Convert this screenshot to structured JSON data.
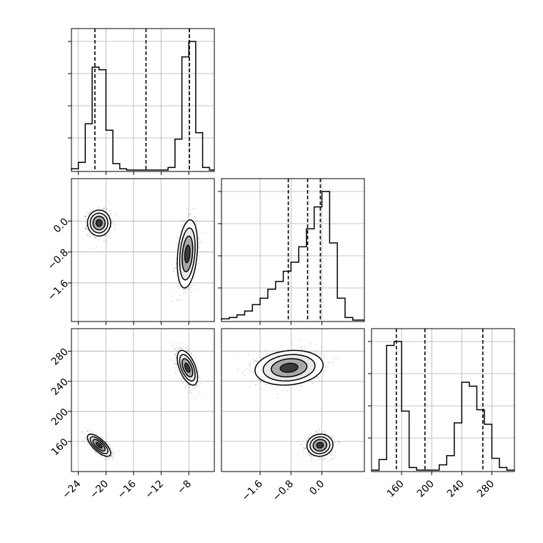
{
  "chart_data": {
    "type": "corner",
    "parameters": [
      "",
      "",
      ""
    ],
    "colors": {
      "hist": "#000000",
      "grid": "#b0b0b0",
      "frame": "#000000",
      "scatter": "#000000",
      "background": "#ffffff"
    },
    "grid": true,
    "ranges": [
      [
        -25,
        -4.3
      ],
      [
        -2.6,
        1.1
      ],
      [
        120,
        310
      ]
    ],
    "ticks": [
      {
        "values": [
          -24,
          -20,
          -16,
          -12,
          -8
        ],
        "labels": [
          "−24",
          "−20",
          "−16",
          "−12",
          "−8"
        ]
      },
      {
        "values": [
          -1.6,
          -0.8,
          0.0
        ],
        "labels": [
          "−1.6",
          "−0.8",
          "0.0"
        ]
      },
      {
        "values": [
          160,
          200,
          240,
          280
        ],
        "labels": [
          "160",
          "200",
          "240",
          "280"
        ]
      }
    ],
    "quantiles": [
      [
        -21.6,
        -14.2,
        -7.9
      ],
      [
        -0.87,
        -0.37,
        -0.04
      ],
      [
        153,
        191,
        268
      ]
    ],
    "histograms": [
      {
        "bin_edges": [
          -25,
          -24,
          -23,
          -22,
          -21,
          -20,
          -19,
          -18,
          -17,
          -16,
          -15,
          -14,
          -13,
          -12,
          -11,
          -10,
          -9,
          -8,
          -7,
          -6,
          -5,
          -4.3
        ],
        "counts": [
          0.01,
          0.06,
          0.36,
          0.8,
          0.78,
          0.31,
          0.05,
          0.01,
          0,
          0,
          0,
          0,
          0,
          0,
          0.02,
          0.24,
          0.88,
          1.0,
          0.29,
          0.02,
          0
        ]
      },
      {
        "bin_edges": [
          -2.6,
          -2.4,
          -2.2,
          -2.0,
          -1.8,
          -1.6,
          -1.4,
          -1.2,
          -1.0,
          -0.8,
          -0.6,
          -0.4,
          -0.2,
          0.0,
          0.2,
          0.4,
          0.6,
          0.8,
          1.0,
          1.1
        ],
        "counts": [
          0.01,
          0.02,
          0.04,
          0.07,
          0.12,
          0.17,
          0.24,
          0.3,
          0.38,
          0.45,
          0.57,
          0.71,
          0.88,
          1.0,
          0.6,
          0.17,
          0.02,
          0,
          0
        ]
      },
      {
        "bin_edges": [
          120,
          130,
          140,
          150,
          160,
          170,
          180,
          190,
          200,
          210,
          220,
          230,
          240,
          250,
          260,
          270,
          280,
          290,
          300,
          310
        ],
        "counts": [
          0,
          0.08,
          0.95,
          0.98,
          0.45,
          0.02,
          0,
          0,
          0,
          0.04,
          0.11,
          0.36,
          0.67,
          0.64,
          0.46,
          0.35,
          0.09,
          0.02,
          0
        ]
      }
    ],
    "modes": [
      {
        "weight": 0.5,
        "mean": [
          -21.0,
          -0.05,
          155
        ],
        "sd": [
          0.8,
          0.16,
          7
        ],
        "rho": {
          "0_1": 0.0,
          "0_2": -0.72,
          "1_2": 0.05
        }
      },
      {
        "weight": 0.5,
        "mean": [
          -8.2,
          -0.85,
          258
        ],
        "sd": [
          0.7,
          0.42,
          11
        ],
        "rho": {
          "0_1": 0.28,
          "0_2": -0.55,
          "1_2": 0.15
        }
      }
    ]
  }
}
